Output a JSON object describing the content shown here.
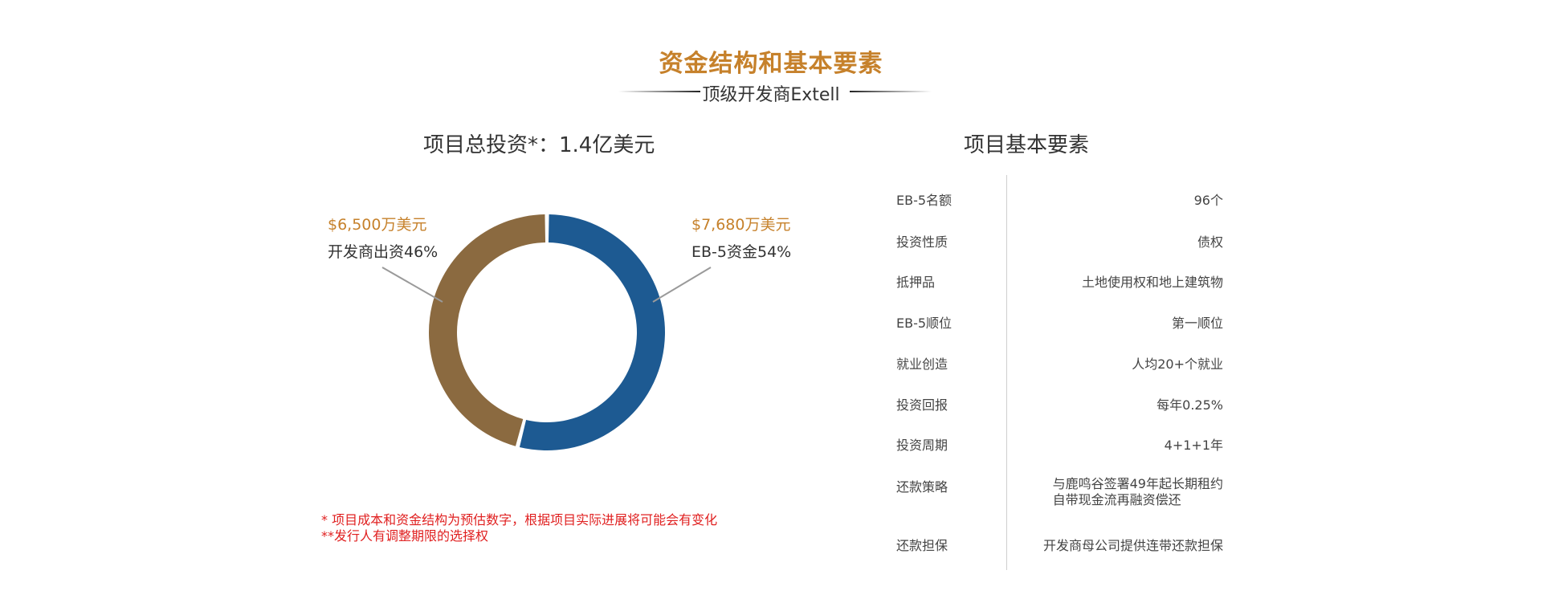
{
  "header": {
    "title": "资金结构和基本要素",
    "subtitle": "顶级开发商Extell"
  },
  "investment": {
    "title": "项目总投资*：1.4亿美元"
  },
  "chart_data": {
    "type": "pie",
    "title": "项目总投资*：1.4亿美元",
    "donut": true,
    "slices": [
      {
        "label": "EB-5资金54%",
        "amount": "$7,680万美元",
        "value": 54,
        "color": "#1d5a92"
      },
      {
        "label": "开发商出资46%",
        "amount": "$6,500万美元",
        "value": 46,
        "color": "#8b6a40"
      }
    ]
  },
  "notes": {
    "line1": "* 项目成本和资金结构为预估数字，根据项目实际进展将可能会有变化",
    "line2": "**发行人有调整期限的选择权"
  },
  "elements": {
    "title": "项目基本要素",
    "rows": [
      {
        "label": "EB-5名额",
        "value": "96个"
      },
      {
        "label": "投资性质",
        "value": "债权"
      },
      {
        "label": "抵押品",
        "value": "土地使用权和地上建筑物"
      },
      {
        "label": "EB-5顺位",
        "value": "第一顺位"
      },
      {
        "label": "就业创造",
        "value": "人均20+个就业"
      },
      {
        "label": "投资回报",
        "value": "每年0.25%"
      },
      {
        "label": "投资周期",
        "value": "4+1+1年"
      },
      {
        "label": "还款策略",
        "value_lines": [
          "与鹿鸣谷签署49年起长期租约",
          "自带现金流再融资偿还"
        ]
      },
      {
        "label": "还款担保",
        "value": "开发商母公司提供连带还款担保"
      }
    ]
  }
}
